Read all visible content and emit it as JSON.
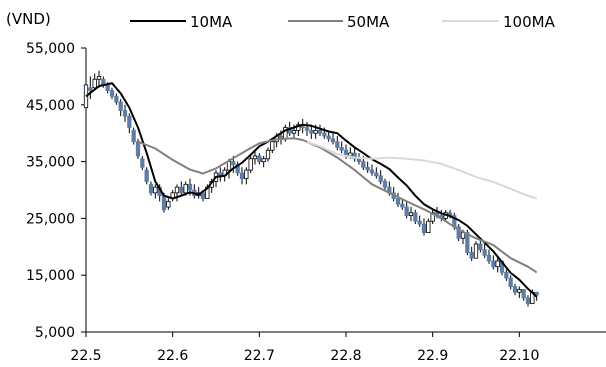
{
  "chart_data": {
    "type": "candlestick-line",
    "unit_label": "(VND)",
    "ylim": [
      5000,
      55000
    ],
    "yticks": [
      55000,
      45000,
      35000,
      25000,
      15000,
      5000
    ],
    "ytick_labels": [
      "55,000",
      "45,000",
      "35,000",
      "25,000",
      "15,000",
      "5,000"
    ],
    "xlim": [
      0,
      120
    ],
    "xticks": [
      {
        "label": "22.5",
        "x": 0
      },
      {
        "label": "22.6",
        "x": 20
      },
      {
        "label": "22.7",
        "x": 40
      },
      {
        "label": "22.8",
        "x": 60
      },
      {
        "label": "22.9",
        "x": 80
      },
      {
        "label": "22.10",
        "x": 100
      }
    ],
    "grid": false,
    "legend_position": "top",
    "series": [
      {
        "name": "10MA",
        "color": "#000000",
        "points": [
          [
            0,
            46500
          ],
          [
            3,
            48300
          ],
          [
            6,
            48800
          ],
          [
            8,
            47000
          ],
          [
            10,
            44500
          ],
          [
            12,
            41000
          ],
          [
            14,
            36500
          ],
          [
            16,
            31500
          ],
          [
            18,
            29000
          ],
          [
            20,
            28500
          ],
          [
            22,
            29000
          ],
          [
            24,
            29600
          ],
          [
            26,
            29200
          ],
          [
            28,
            30300
          ],
          [
            30,
            32300
          ],
          [
            32,
            32500
          ],
          [
            34,
            33800
          ],
          [
            36,
            34800
          ],
          [
            38,
            36200
          ],
          [
            40,
            37700
          ],
          [
            42,
            38500
          ],
          [
            44,
            39500
          ],
          [
            46,
            40500
          ],
          [
            48,
            41000
          ],
          [
            50,
            41500
          ],
          [
            52,
            41300
          ],
          [
            54,
            40800
          ],
          [
            56,
            40300
          ],
          [
            58,
            40000
          ],
          [
            60,
            38700
          ],
          [
            62,
            37500
          ],
          [
            64,
            36500
          ],
          [
            66,
            35400
          ],
          [
            68,
            34600
          ],
          [
            70,
            33700
          ],
          [
            72,
            32200
          ],
          [
            74,
            30800
          ],
          [
            76,
            29000
          ],
          [
            78,
            27500
          ],
          [
            80,
            26600
          ],
          [
            82,
            25900
          ],
          [
            84,
            25400
          ],
          [
            86,
            24700
          ],
          [
            88,
            23700
          ],
          [
            90,
            22200
          ],
          [
            92,
            20700
          ],
          [
            94,
            19200
          ],
          [
            96,
            17300
          ],
          [
            98,
            15400
          ],
          [
            100,
            14200
          ],
          [
            102,
            12600
          ],
          [
            104,
            11200
          ]
        ]
      },
      {
        "name": "50MA",
        "color": "#808080",
        "points": [
          [
            12,
            38500
          ],
          [
            16,
            37300
          ],
          [
            20,
            35300
          ],
          [
            24,
            33600
          ],
          [
            27,
            32900
          ],
          [
            30,
            33800
          ],
          [
            34,
            35600
          ],
          [
            38,
            37400
          ],
          [
            40,
            38200
          ],
          [
            44,
            38900
          ],
          [
            48,
            39100
          ],
          [
            50,
            38800
          ],
          [
            54,
            37500
          ],
          [
            58,
            35700
          ],
          [
            62,
            33500
          ],
          [
            66,
            31000
          ],
          [
            70,
            29500
          ],
          [
            74,
            28000
          ],
          [
            78,
            26600
          ],
          [
            82,
            25000
          ],
          [
            86,
            23000
          ],
          [
            90,
            21500
          ],
          [
            94,
            20300
          ],
          [
            98,
            18000
          ],
          [
            102,
            16500
          ],
          [
            104,
            15500
          ]
        ]
      },
      {
        "name": "100MA",
        "color": "#d9d9d9",
        "points": [
          [
            51,
            38500
          ],
          [
            54,
            37700
          ],
          [
            58,
            36300
          ],
          [
            62,
            35700
          ],
          [
            66,
            35500
          ],
          [
            70,
            35700
          ],
          [
            74,
            35500
          ],
          [
            78,
            35200
          ],
          [
            82,
            34600
          ],
          [
            86,
            33500
          ],
          [
            90,
            32300
          ],
          [
            94,
            31400
          ],
          [
            98,
            30200
          ],
          [
            102,
            29000
          ],
          [
            104,
            28500
          ]
        ]
      }
    ],
    "candles": [
      [
        0,
        44000,
        49000,
        44500,
        48500
      ],
      [
        1,
        46000,
        50000,
        48000,
        47500
      ],
      [
        2,
        47500,
        50500,
        48000,
        49500
      ],
      [
        3,
        48000,
        51000,
        49500,
        50000
      ],
      [
        4,
        48000,
        50000,
        49500,
        48500
      ],
      [
        5,
        47000,
        49000,
        48500,
        47500
      ],
      [
        6,
        46000,
        48000,
        47500,
        46500
      ],
      [
        7,
        45000,
        47000,
        46500,
        45500
      ],
      [
        8,
        43000,
        46000,
        45500,
        44000
      ],
      [
        9,
        42000,
        45000,
        44000,
        43000
      ],
      [
        10,
        40000,
        43500,
        43000,
        41000
      ],
      [
        11,
        38000,
        41000,
        40500,
        38500
      ],
      [
        12,
        35500,
        39000,
        38500,
        36000
      ],
      [
        13,
        33500,
        36000,
        35500,
        34000
      ],
      [
        14,
        31000,
        34000,
        33500,
        31500
      ],
      [
        15,
        29000,
        31500,
        31000,
        29500
      ],
      [
        16,
        28500,
        31000,
        29500,
        30500
      ],
      [
        17,
        28000,
        31000,
        30500,
        29000
      ],
      [
        18,
        26000,
        29500,
        29000,
        26500
      ],
      [
        19,
        26500,
        28500,
        27000,
        28000
      ],
      [
        20,
        28000,
        30000,
        28500,
        29500
      ],
      [
        21,
        28000,
        31000,
        29500,
        30500
      ],
      [
        22,
        29000,
        31500,
        30500,
        29500
      ],
      [
        23,
        29000,
        31500,
        29500,
        31000
      ],
      [
        24,
        29000,
        32000,
        31000,
        30000
      ],
      [
        25,
        28500,
        31000,
        30000,
        29000
      ],
      [
        26,
        28500,
        30500,
        29000,
        29500
      ],
      [
        27,
        28000,
        30000,
        29500,
        28500
      ],
      [
        28,
        28500,
        31000,
        28500,
        30500
      ],
      [
        29,
        29500,
        32000,
        30500,
        31500
      ],
      [
        30,
        30500,
        33500,
        31500,
        33000
      ],
      [
        31,
        31500,
        34000,
        33000,
        32500
      ],
      [
        32,
        31500,
        34000,
        32500,
        33500
      ],
      [
        33,
        32000,
        35500,
        33500,
        35000
      ],
      [
        34,
        33000,
        36000,
        35000,
        34500
      ],
      [
        35,
        32500,
        35000,
        34500,
        33000
      ],
      [
        36,
        31000,
        34000,
        33000,
        32000
      ],
      [
        37,
        31000,
        34000,
        32000,
        33500
      ],
      [
        38,
        33000,
        36000,
        33500,
        35500
      ],
      [
        39,
        34500,
        37000,
        35500,
        36000
      ],
      [
        40,
        34500,
        36500,
        36000,
        35000
      ],
      [
        41,
        34000,
        36000,
        35000,
        35500
      ],
      [
        42,
        35000,
        37500,
        35500,
        37000
      ],
      [
        43,
        36500,
        39000,
        37000,
        38500
      ],
      [
        44,
        37500,
        40000,
        38500,
        39500
      ],
      [
        45,
        38000,
        40500,
        39500,
        39000
      ],
      [
        46,
        38500,
        41500,
        39000,
        41000
      ],
      [
        47,
        39500,
        42000,
        41000,
        40000
      ],
      [
        48,
        39000,
        41500,
        40000,
        40500
      ],
      [
        49,
        39500,
        42000,
        40500,
        41500
      ],
      [
        50,
        40000,
        42500,
        41500,
        41000
      ],
      [
        51,
        39500,
        42000,
        41000,
        40500
      ],
      [
        52,
        39000,
        41500,
        40500,
        40000
      ],
      [
        53,
        39000,
        41500,
        40000,
        40500
      ],
      [
        54,
        39500,
        41500,
        40500,
        40000
      ],
      [
        55,
        39000,
        41000,
        40000,
        39500
      ],
      [
        56,
        38500,
        40500,
        39500,
        39000
      ],
      [
        57,
        38000,
        40000,
        39000,
        38500
      ],
      [
        58,
        37000,
        39500,
        38500,
        37500
      ],
      [
        59,
        36500,
        38500,
        37500,
        37000
      ],
      [
        60,
        35500,
        38000,
        37000,
        36000
      ],
      [
        61,
        35500,
        37500,
        36000,
        36500
      ],
      [
        62,
        35000,
        37500,
        36500,
        35500
      ],
      [
        63,
        34500,
        36500,
        35500,
        35000
      ],
      [
        64,
        33500,
        36000,
        35000,
        34000
      ],
      [
        65,
        33000,
        35000,
        34000,
        33500
      ],
      [
        66,
        32500,
        34500,
        33500,
        33000
      ],
      [
        67,
        32000,
        34000,
        33000,
        32500
      ],
      [
        68,
        31000,
        33500,
        32500,
        31500
      ],
      [
        69,
        30000,
        32000,
        31500,
        30500
      ],
      [
        70,
        29000,
        31500,
        30500,
        29500
      ],
      [
        71,
        28000,
        30500,
        29500,
        28500
      ],
      [
        72,
        27000,
        29500,
        28500,
        27500
      ],
      [
        73,
        26500,
        28500,
        27500,
        27000
      ],
      [
        74,
        25000,
        28000,
        27000,
        25500
      ],
      [
        75,
        24500,
        27000,
        25500,
        26000
      ],
      [
        76,
        24000,
        26500,
        26000,
        24500
      ],
      [
        77,
        23500,
        25500,
        24500,
        24000
      ],
      [
        78,
        22000,
        25000,
        24000,
        22500
      ],
      [
        79,
        22500,
        25000,
        22500,
        24500
      ],
      [
        80,
        24000,
        26500,
        24500,
        26000
      ],
      [
        81,
        25000,
        27000,
        26000,
        25500
      ],
      [
        82,
        24500,
        26500,
        25500,
        25000
      ],
      [
        83,
        24500,
        26500,
        25000,
        26000
      ],
      [
        84,
        25000,
        26500,
        26000,
        25500
      ],
      [
        85,
        23000,
        26000,
        25500,
        23500
      ],
      [
        86,
        21000,
        24000,
        23500,
        21500
      ],
      [
        87,
        20500,
        23000,
        21500,
        22500
      ],
      [
        88,
        18500,
        23000,
        22500,
        19000
      ],
      [
        89,
        17500,
        20000,
        19000,
        18000
      ],
      [
        90,
        18000,
        21000,
        18000,
        20500
      ],
      [
        91,
        19000,
        21000,
        20500,
        19500
      ],
      [
        92,
        18000,
        20500,
        19500,
        18500
      ],
      [
        93,
        17000,
        19500,
        18500,
        17500
      ],
      [
        94,
        16000,
        18500,
        17500,
        16500
      ],
      [
        95,
        15500,
        18000,
        16500,
        17500
      ],
      [
        96,
        15000,
        17500,
        17500,
        15500
      ],
      [
        97,
        14000,
        16000,
        15500,
        14500
      ],
      [
        98,
        12500,
        15000,
        14500,
        13000
      ],
      [
        99,
        11500,
        13500,
        13000,
        12000
      ],
      [
        100,
        11000,
        13000,
        12000,
        12500
      ],
      [
        101,
        10500,
        12500,
        12500,
        11000
      ],
      [
        102,
        9500,
        11500,
        11000,
        10000
      ],
      [
        103,
        10000,
        12500,
        10000,
        12000
      ],
      [
        104,
        10500,
        12000,
        12000,
        11500
      ]
    ]
  }
}
